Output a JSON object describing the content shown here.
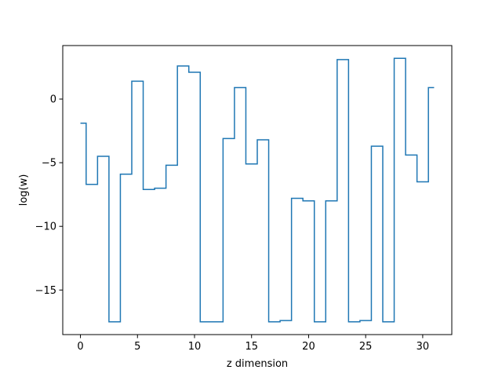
{
  "chart_data": {
    "type": "line",
    "drawstyle": "steps-mid",
    "title": "",
    "xlabel": "z dimension",
    "ylabel": "log(w)",
    "xlim": [
      -1.55,
      32.55
    ],
    "ylim": [
      -18.5,
      4.2
    ],
    "xticks": [
      0,
      5,
      10,
      15,
      20,
      25,
      30
    ],
    "xtick_labels": [
      "0",
      "5",
      "10",
      "15",
      "20",
      "25",
      "30"
    ],
    "yticks": [
      -15,
      -10,
      -5,
      0
    ],
    "ytick_labels": [
      "−15",
      "−10",
      "−5",
      "0"
    ],
    "grid": false,
    "line_color": "#1f77b4",
    "series": [
      {
        "x": [
          0,
          1,
          2,
          3,
          4,
          5,
          6,
          7,
          8,
          9,
          10,
          11,
          12,
          13,
          14,
          15,
          16,
          17,
          18,
          19,
          20,
          21,
          22,
          23,
          24,
          25,
          26,
          27,
          28,
          29,
          30,
          31
        ],
        "values": [
          -1.9,
          -6.7,
          -4.5,
          -17.5,
          -5.9,
          1.4,
          -7.1,
          -7.0,
          -5.2,
          2.6,
          2.1,
          -17.5,
          -17.5,
          -3.1,
          0.9,
          -5.1,
          -3.2,
          -17.5,
          -17.4,
          -7.8,
          -8.0,
          -17.5,
          -8.0,
          3.1,
          -17.5,
          -17.4,
          -3.7,
          -17.5,
          3.2,
          -4.4,
          -6.5,
          0.9
        ]
      }
    ]
  }
}
